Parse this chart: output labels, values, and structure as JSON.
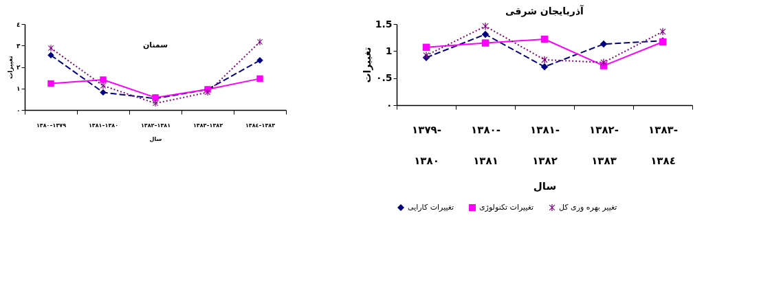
{
  "chart_data": [
    {
      "type": "line",
      "title": "سمنان",
      "xlabel": "سال",
      "ylabel": "تغییرات",
      "categories": [
        "١٣٧٩–١٣٨٠",
        "١٣٨٠–١٣٨١",
        "١٣٨١–١٣٨٢",
        "١٣٨٢–١٣٨٣",
        "١٣٨٣–١٣٨٤"
      ],
      "series": [
        {
          "color": "#000080",
          "marker": "diamond",
          "line_style": "dashed",
          "values": [
            2.55,
            0.82,
            0.53,
            0.96,
            2.31
          ]
        },
        {
          "color": "#ff00ff",
          "marker": "square",
          "line_style": "solid",
          "values": [
            1.23,
            1.41,
            0.58,
            0.96,
            1.46
          ]
        },
        {
          "color": "#800080",
          "marker": "cross",
          "line_style": "dotted",
          "values": [
            2.88,
            1.13,
            0.31,
            0.82,
            3.17
          ]
        }
      ],
      "ylim": [
        0,
        4
      ],
      "yticks": [
        {
          "value": 0,
          "label": "٠"
        },
        {
          "value": 1,
          "label": "١"
        },
        {
          "value": 2,
          "label": "٢"
        },
        {
          "value": 3,
          "label": "٣"
        },
        {
          "value": 4,
          "label": "٤"
        }
      ],
      "grid": false,
      "legend": false
    },
    {
      "type": "line",
      "title": "آذربایجان شرقی",
      "xlabel": "سال",
      "ylabel": "تغییرات",
      "categories": [
        "١٣٧٩-\n١٣٨٠",
        "١٣٨٠-\n١٣٨١",
        "١٣٨١-\n١٣٨٢",
        "١٣٨٢-\n١٣٨٣",
        "١٣٨٣-\n١٣٨٤"
      ],
      "series": [
        {
          "name": "تغییرات کارایی",
          "color": "#000080",
          "marker": "diamond",
          "line_style": "dashed",
          "values": [
            0.88,
            1.31,
            0.71,
            1.13,
            1.19
          ]
        },
        {
          "name": "تغییرات تکنولوژی",
          "color": "#ff00ff",
          "marker": "square",
          "line_style": "solid",
          "values": [
            1.07,
            1.15,
            1.22,
            0.73,
            1.17
          ]
        },
        {
          "name": "تغییر بهره وری کل",
          "color": "#800080",
          "marker": "cross",
          "line_style": "dotted",
          "values": [
            0.92,
            1.46,
            0.84,
            0.79,
            1.36
          ]
        }
      ],
      "ylim": [
        0,
        1.5
      ],
      "yticks": [
        {
          "value": 0,
          "label": "٠"
        },
        {
          "value": 0.5,
          "label": "٠.5"
        },
        1,
        1.5
      ],
      "grid": false,
      "legend": "bottom"
    }
  ]
}
